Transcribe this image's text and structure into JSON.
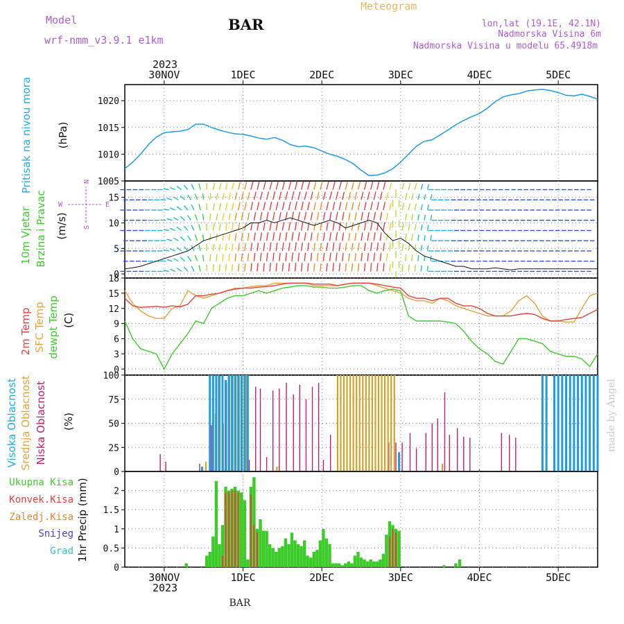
{
  "header": {
    "model_label": "Model",
    "model_name": "wrf-nmm_v3.9.1 e1km",
    "station": "BAR",
    "title": "Meteogram",
    "coords": "lon,lat (19.1E, 42.1N)",
    "elevation": "Nadmorska Visina 6m",
    "model_elevation": "Nadmorska Visina u modelu 65.4918m",
    "footer_station": "BAR",
    "watermark": "made by Angel"
  },
  "time_axis": {
    "days": [
      "30NOV",
      "1DEC",
      "2DEC",
      "3DEC",
      "4DEC",
      "5DEC"
    ],
    "year": "2023"
  },
  "panels": {
    "pressure": {
      "ylabel": "Pritisak na nivou mora",
      "unit": "(hPa)"
    },
    "wind": {
      "ylabel1": "10m Vjetar",
      "ylabel2": "Brzina i Pravac",
      "unit": "(m/s)",
      "compass": [
        "N",
        "S",
        "W",
        "E"
      ]
    },
    "temperature": {
      "ylabel1": "2m Temp",
      "ylabel2": "SFC Temp",
      "ylabel3": "dewpt Temp",
      "unit": "(C)"
    },
    "cloud": {
      "ylabel1": "Visoka Oblacnost",
      "ylabel2": "Srednja Oblacnost",
      "ylabel3": "Niska Oblacnost",
      "unit": "(%)"
    },
    "precip": {
      "legend": [
        "Ukupna Kisa",
        "Konvek.Kisa",
        "Zaledj.Kisa",
        "Snijeg",
        "Grad"
      ],
      "ylabel": "1hr Precip (mm)"
    }
  },
  "colors": {
    "pressure": "#1e9be6",
    "temp2m": "#e8403a",
    "sfc": "#e8a23a",
    "dewpt": "#3ccc2a",
    "high_cloud": "#1e9be6",
    "mid_cloud": "#d4a22a",
    "low_cloud": "#c0206a",
    "total_precip": "#3ccc2a",
    "conv_precip": "#e8403a",
    "freezing": "#f08030",
    "snow": "#4040e0",
    "hail": "#30c8c8",
    "model": "#b05ad8"
  },
  "chart_data": [
    {
      "type": "line",
      "title": "Pritisak na nivou mora",
      "ylabel": "(hPa)",
      "ylim": [
        1005,
        1023
      ],
      "yticks": [
        1005,
        1010,
        1015,
        1020
      ],
      "xlim": [
        -0.5,
        5.5
      ],
      "x": [
        -0.5,
        -0.4,
        -0.3,
        -0.2,
        -0.1,
        0.0,
        0.1,
        0.2,
        0.3,
        0.4,
        0.5,
        0.6,
        0.7,
        0.8,
        0.9,
        1.0,
        1.1,
        1.2,
        1.3,
        1.4,
        1.5,
        1.6,
        1.7,
        1.8,
        1.9,
        2.0,
        2.1,
        2.2,
        2.3,
        2.4,
        2.5,
        2.6,
        2.7,
        2.8,
        2.9,
        3.0,
        3.1,
        3.2,
        3.3,
        3.4,
        3.5,
        3.6,
        3.7,
        3.8,
        3.9,
        4.0,
        4.1,
        4.2,
        4.3,
        4.4,
        4.5,
        4.6,
        4.7,
        4.8,
        4.9,
        5.0,
        5.1,
        5.2,
        5.3,
        5.4,
        5.5
      ],
      "series": [
        {
          "name": "",
          "values": [
            1007.3,
            1008.5,
            1010.0,
            1011.8,
            1013.2,
            1014.0,
            1014.2,
            1014.3,
            1014.6,
            1015.6,
            1015.6,
            1015.0,
            1014.5,
            1014.1,
            1013.8,
            1013.7,
            1013.4,
            1013.0,
            1012.8,
            1013.1,
            1012.6,
            1011.8,
            1011.4,
            1011.5,
            1011.2,
            1010.6,
            1010.0,
            1009.6,
            1009.0,
            1008.2,
            1007.0,
            1006.0,
            1006.1,
            1006.5,
            1007.3,
            1008.5,
            1010.0,
            1011.5,
            1012.4,
            1012.7,
            1013.6,
            1014.5,
            1015.5,
            1016.3,
            1017.0,
            1017.6,
            1018.6,
            1019.8,
            1020.7,
            1021.1,
            1021.3,
            1021.8,
            1022.0,
            1022.1,
            1021.9,
            1021.5,
            1021.0,
            1020.9,
            1021.2,
            1020.8,
            1020.3
          ]
        }
      ]
    },
    {
      "type": "line",
      "title": "10m Vjetar Brzina i Pravac",
      "ylabel": "(m/s)",
      "ylim": [
        -0.8,
        18.2
      ],
      "yticks": [
        0,
        5,
        10,
        15
      ],
      "x": [
        -0.5,
        -0.4,
        -0.3,
        -0.2,
        -0.1,
        0.0,
        0.1,
        0.2,
        0.3,
        0.4,
        0.5,
        0.6,
        0.7,
        0.8,
        0.9,
        1.0,
        1.1,
        1.2,
        1.3,
        1.4,
        1.5,
        1.6,
        1.7,
        1.8,
        1.9,
        2.0,
        2.1,
        2.2,
        2.3,
        2.4,
        2.5,
        2.6,
        2.7,
        2.8,
        2.9,
        3.0,
        3.1,
        3.2,
        3.3,
        3.4,
        3.5,
        3.6,
        3.7,
        3.8,
        3.9,
        4.0,
        4.1,
        4.2,
        4.3,
        4.4,
        4.5,
        4.6,
        4.7,
        4.8,
        4.9,
        5.0,
        5.1,
        5.2,
        5.3,
        5.4,
        5.5
      ],
      "series": [
        {
          "name": "",
          "values": [
            1.0,
            1.2,
            1.5,
            2.0,
            2.5,
            3.0,
            3.5,
            4.0,
            4.5,
            5.5,
            6.5,
            7.0,
            7.5,
            8.0,
            8.5,
            9.0,
            10.0,
            10.0,
            10.5,
            10.0,
            10.5,
            11.0,
            10.5,
            10.0,
            9.5,
            10.0,
            10.5,
            10.0,
            9.0,
            9.5,
            10.0,
            10.5,
            10.0,
            8.0,
            6.5,
            7.0,
            6.0,
            4.5,
            3.5,
            3.0,
            2.5,
            2.0,
            1.5,
            1.5,
            1.0,
            1.0,
            1.0,
            1.2,
            1.0,
            0.8,
            1.0,
            1.0,
            1.0,
            1.0,
            1.0,
            1.0,
            1.0,
            1.0,
            1.0,
            1.0,
            1.0
          ]
        }
      ]
    },
    {
      "type": "line",
      "title": "2m Temp / SFC Temp / dewpt Temp",
      "ylabel": "(C)",
      "ylim": [
        -1.2,
        18
      ],
      "yticks": [
        0,
        3,
        6,
        9,
        12,
        15,
        18
      ],
      "x": [
        -0.5,
        -0.4,
        -0.3,
        -0.2,
        -0.1,
        0.0,
        0.1,
        0.2,
        0.3,
        0.4,
        0.5,
        0.6,
        0.7,
        0.8,
        0.9,
        1.0,
        1.1,
        1.2,
        1.3,
        1.4,
        1.5,
        1.6,
        1.7,
        1.8,
        1.9,
        2.0,
        2.1,
        2.2,
        2.3,
        2.4,
        2.5,
        2.6,
        2.7,
        2.8,
        2.9,
        3.0,
        3.1,
        3.2,
        3.3,
        3.4,
        3.5,
        3.6,
        3.7,
        3.8,
        3.9,
        4.0,
        4.1,
        4.2,
        4.3,
        4.4,
        4.5,
        4.6,
        4.7,
        4.8,
        4.9,
        5.0,
        5.1,
        5.2,
        5.3,
        5.4,
        5.5
      ],
      "series": [
        {
          "name": "2m Temp",
          "values": [
            14.0,
            12.5,
            12.2,
            12.3,
            12.4,
            12.2,
            12.5,
            12.3,
            12.8,
            14.5,
            14.5,
            14.8,
            15.0,
            15.5,
            15.8,
            16.0,
            16.0,
            16.2,
            16.3,
            16.5,
            16.8,
            17.0,
            17.0,
            17.0,
            16.8,
            16.8,
            16.8,
            16.5,
            16.8,
            17.0,
            17.0,
            17.0,
            16.8,
            16.5,
            16.2,
            16.0,
            14.5,
            14.0,
            14.0,
            13.5,
            14.0,
            14.0,
            13.0,
            12.5,
            12.5,
            12.0,
            11.0,
            10.5,
            10.5,
            10.5,
            10.8,
            11.0,
            10.8,
            10.0,
            9.5,
            9.5,
            9.8,
            10.0,
            10.2,
            11.0,
            11.8
          ]
        },
        {
          "name": "SFC Temp",
          "values": [
            15.5,
            13.0,
            11.5,
            10.5,
            10.0,
            10.0,
            12.0,
            12.5,
            15.5,
            14.5,
            14.0,
            14.5,
            15.0,
            15.5,
            16.0,
            16.0,
            16.3,
            16.5,
            16.5,
            17.0,
            17.0,
            17.0,
            17.0,
            17.0,
            16.5,
            16.5,
            16.5,
            16.5,
            16.8,
            17.0,
            17.0,
            17.0,
            16.5,
            16.0,
            15.5,
            15.0,
            14.0,
            13.5,
            13.5,
            13.0,
            14.0,
            13.5,
            12.5,
            12.0,
            11.5,
            11.0,
            10.5,
            10.5,
            10.5,
            11.5,
            13.5,
            14.5,
            13.0,
            10.5,
            9.5,
            9.5,
            9.3,
            9.3,
            12.0,
            14.5,
            15.0
          ]
        },
        {
          "name": "dewpt Temp",
          "values": [
            9.5,
            6.0,
            4.0,
            3.5,
            3.0,
            0.0,
            3.0,
            5.0,
            7.0,
            9.5,
            9.0,
            12.0,
            13.0,
            14.0,
            14.5,
            14.5,
            15.0,
            15.5,
            15.0,
            15.5,
            16.0,
            16.2,
            16.5,
            16.5,
            16.2,
            16.2,
            16.0,
            16.0,
            16.2,
            16.5,
            16.5,
            15.5,
            15.0,
            15.5,
            15.8,
            15.5,
            10.5,
            9.5,
            9.5,
            9.5,
            9.5,
            9.3,
            9.0,
            7.5,
            5.5,
            4.0,
            3.0,
            1.5,
            1.0,
            3.5,
            6.0,
            6.0,
            5.5,
            5.0,
            3.5,
            3.0,
            2.5,
            2.5,
            2.0,
            0.5,
            3.0
          ]
        }
      ]
    },
    {
      "type": "bar",
      "title": "Visoka / Srednja / Niska Oblacnost",
      "ylabel": "(%)",
      "ylim": [
        0,
        100
      ],
      "yticks": [
        0,
        25,
        50,
        75,
        100
      ],
      "series": [
        {
          "name": "Visoka Oblacnost",
          "x": [
            0.48,
            0.58,
            0.62,
            0.66,
            0.7,
            0.74,
            0.78,
            0.82,
            0.86,
            0.9,
            0.94,
            0.98,
            1.02,
            1.06,
            2.98,
            4.8,
            4.85,
            4.95,
            5.0,
            5.05,
            5.1,
            5.15,
            5.2,
            5.25,
            5.3,
            5.35,
            5.4,
            5.45,
            5.5
          ],
          "values": [
            5,
            100,
            100,
            100,
            100,
            100,
            95,
            100,
            100,
            100,
            100,
            100,
            100,
            100,
            20,
            100,
            100,
            100,
            100,
            100,
            100,
            100,
            100,
            100,
            100,
            100,
            100,
            100,
            100
          ]
        },
        {
          "name": "Srednja Oblacnost",
          "x": [
            0.53,
            0.65,
            0.69,
            0.74,
            0.79,
            0.83,
            0.87,
            0.91,
            0.95,
            0.99,
            1.04,
            1.43,
            2.2,
            2.24,
            2.28,
            2.32,
            2.36,
            2.4,
            2.44,
            2.48,
            2.52,
            2.56,
            2.6,
            2.64,
            2.68,
            2.72,
            2.76,
            2.8,
            2.84,
            2.88,
            2.92,
            3.53,
            5.25
          ],
          "values": [
            10,
            60,
            100,
            100,
            92,
            100,
            100,
            100,
            100,
            100,
            100,
            5,
            100,
            100,
            100,
            100,
            100,
            100,
            100,
            100,
            100,
            100,
            100,
            100,
            100,
            100,
            100,
            100,
            100,
            100,
            100,
            8,
            100
          ]
        },
        {
          "name": "Niska Oblacnost",
          "x": [
            -0.05,
            0.02,
            0.45,
            0.6,
            0.75,
            1.08,
            1.16,
            1.22,
            1.3,
            1.38,
            1.46,
            1.55,
            1.64,
            1.72,
            1.8,
            1.88,
            1.96,
            2.02,
            2.11,
            2.2,
            2.28,
            2.36,
            2.44,
            2.52,
            2.6,
            2.68,
            2.76,
            2.85,
            2.94,
            3.02,
            3.12,
            3.2,
            3.32,
            3.4,
            3.47,
            3.56,
            3.62,
            3.72,
            3.8,
            3.88,
            4.0,
            4.28,
            4.38,
            4.46
          ],
          "values": [
            18,
            10,
            8,
            48,
            50,
            12,
            88,
            86,
            15,
            84,
            86,
            92,
            80,
            90,
            75,
            88,
            92,
            12,
            38,
            26,
            100,
            42,
            45,
            45,
            95,
            45,
            95,
            30,
            30,
            30,
            40,
            24,
            40,
            50,
            55,
            82,
            38,
            45,
            36,
            35,
            2,
            40,
            38,
            35
          ]
        }
      ]
    },
    {
      "type": "bar",
      "title": "1hr Precip",
      "ylabel": "1hr Precip (mm)",
      "ylim": [
        0,
        2.5
      ],
      "yticks": [
        0,
        0.5,
        1,
        1.5,
        2
      ],
      "series": [
        {
          "name": "Ukupna Kisa",
          "x": [
            0.28,
            0.54,
            0.58,
            0.62,
            0.66,
            0.7,
            0.74,
            0.78,
            0.82,
            0.86,
            0.9,
            0.94,
            0.98,
            1.02,
            1.06,
            1.1,
            1.14,
            1.18,
            1.22,
            1.26,
            1.3,
            1.34,
            1.38,
            1.42,
            1.46,
            1.5,
            1.54,
            1.58,
            1.62,
            1.66,
            1.7,
            1.74,
            1.78,
            1.82,
            1.86,
            1.9,
            1.94,
            1.98,
            2.02,
            2.06,
            2.1,
            2.14,
            2.18,
            2.22,
            2.26,
            2.3,
            2.34,
            2.38,
            2.42,
            2.46,
            2.5,
            2.54,
            2.58,
            2.62,
            2.66,
            2.7,
            2.74,
            2.78,
            2.82,
            2.86,
            2.9,
            2.94,
            2.98,
            3.55,
            3.7,
            3.75
          ],
          "values": [
            0.1,
            0.3,
            0.4,
            0.8,
            2.25,
            0.6,
            1.1,
            2.1,
            2.0,
            2.05,
            2.1,
            2.0,
            1.95,
            1.75,
            0.2,
            2.1,
            2.35,
            1.0,
            1.25,
            0.95,
            0.95,
            0.6,
            0.5,
            0.4,
            0.5,
            0.55,
            0.75,
            0.6,
            0.9,
            0.7,
            0.6,
            0.55,
            0.7,
            0.3,
            0.25,
            0.4,
            0.45,
            0.7,
            1.0,
            0.75,
            0.6,
            0.1,
            0.1,
            0.1,
            0.05,
            0.1,
            0.15,
            0.1,
            0.3,
            0.4,
            0.25,
            0.2,
            0.15,
            0.2,
            0.15,
            0.15,
            0.2,
            0.35,
            0.85,
            1.2,
            1.1,
            1.0,
            0.95,
            0.05,
            0.1,
            0.2
          ]
        },
        {
          "name": "Konvek.Kisa",
          "x": [
            0.74,
            0.78,
            0.82,
            0.86,
            0.9,
            0.94,
            1.1,
            1.14,
            1.18,
            2.86,
            2.9,
            2.94
          ],
          "values": [
            0.3,
            1.95,
            1.95,
            2.0,
            2.0,
            1.95,
            1.9,
            1.1,
            0.9,
            0.8,
            1.0,
            0.9
          ]
        }
      ]
    }
  ]
}
